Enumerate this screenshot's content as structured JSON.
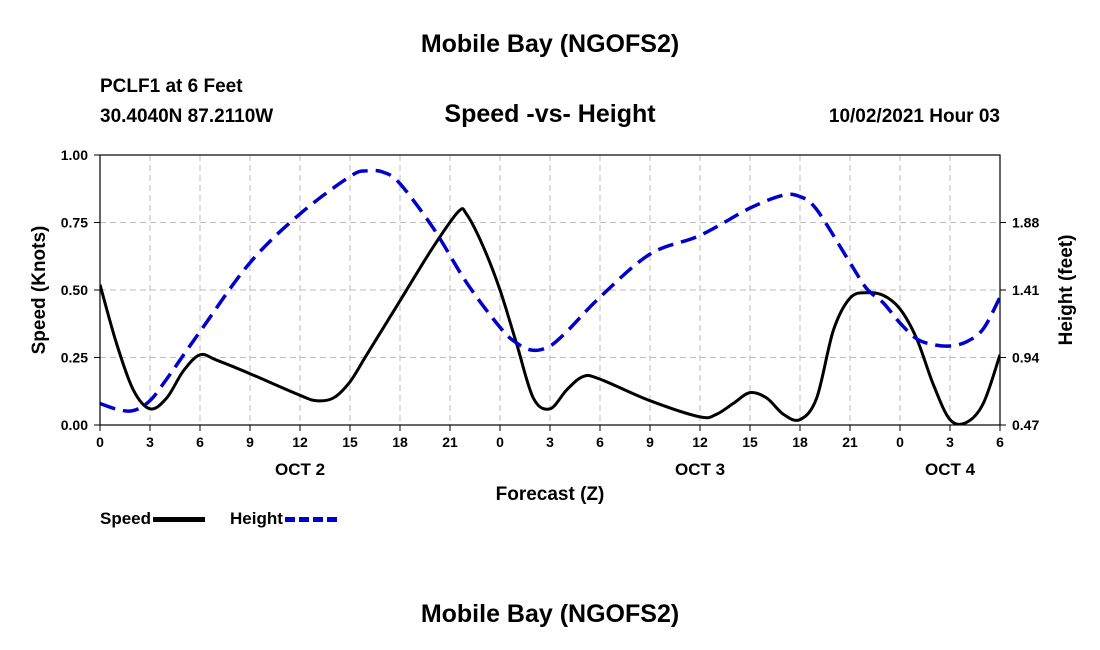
{
  "header": {
    "title_top": "Mobile Bay (NGOFS2)",
    "station": "PCLF1 at 6 Feet",
    "coords": "30.4040N  87.2110W",
    "chart_title": "Speed -vs- Height",
    "timestamp": "10/02/2021 Hour 03",
    "title_bottom": "Mobile Bay (NGOFS2)"
  },
  "legend": {
    "speed_label": "Speed",
    "height_label": "Height"
  },
  "colors": {
    "speed": "#000000",
    "height": "#0000cc",
    "grid": "#bbbbbb"
  },
  "chart_data": {
    "type": "line",
    "title": "Speed -vs- Height",
    "xlabel": "Forecast (Z)",
    "ylabel": "Speed (Knots)",
    "ylabel_right": "Height (feet)",
    "xlim": [
      0,
      54
    ],
    "ylim": [
      0,
      1.0
    ],
    "ylim_right": [
      0.47,
      2.35
    ],
    "grid": true,
    "legend_position": "bottom-left",
    "x_ticks": [
      0,
      3,
      6,
      9,
      12,
      15,
      18,
      21,
      24,
      27,
      30,
      33,
      36,
      39,
      42,
      45,
      48,
      51,
      54
    ],
    "x_tick_labels": [
      "0",
      "3",
      "6",
      "9",
      "12",
      "15",
      "18",
      "21",
      "0",
      "3",
      "6",
      "9",
      "12",
      "15",
      "18",
      "21",
      "0",
      "3",
      "6"
    ],
    "y_ticks": [
      0,
      0.25,
      0.5,
      0.75,
      1.0
    ],
    "y_tick_labels": [
      "0.00",
      "0.25",
      "0.50",
      "0.75",
      "1.00"
    ],
    "y_right_ticks": [
      0.47,
      0.94,
      1.41,
      1.88
    ],
    "y_right_tick_labels": [
      "0.47",
      "0.94",
      "1.41",
      "1.88"
    ],
    "date_labels": [
      {
        "x": 12,
        "label": "OCT 2"
      },
      {
        "x": 36,
        "label": "OCT 3"
      },
      {
        "x": 51,
        "label": "OCT 4"
      }
    ],
    "series": [
      {
        "name": "Speed",
        "axis": "left",
        "style": "solid",
        "x": [
          0,
          1,
          2,
          3,
          4,
          5,
          6,
          7,
          9,
          12,
          13,
          14,
          15,
          16,
          18,
          20,
          21.5,
          22,
          23,
          24,
          25,
          26,
          27,
          28,
          29,
          30,
          33,
          36,
          37,
          38,
          39,
          40,
          41,
          42,
          43,
          44,
          45,
          46,
          47,
          48,
          49,
          50,
          51,
          52,
          53,
          54
        ],
        "values": [
          0.52,
          0.3,
          0.13,
          0.06,
          0.1,
          0.2,
          0.26,
          0.24,
          0.19,
          0.11,
          0.09,
          0.1,
          0.16,
          0.26,
          0.46,
          0.66,
          0.79,
          0.78,
          0.66,
          0.5,
          0.3,
          0.1,
          0.06,
          0.13,
          0.18,
          0.17,
          0.09,
          0.03,
          0.04,
          0.08,
          0.12,
          0.1,
          0.04,
          0.02,
          0.1,
          0.35,
          0.47,
          0.49,
          0.48,
          0.43,
          0.32,
          0.15,
          0.02,
          0.01,
          0.08,
          0.26
        ]
      },
      {
        "name": "Height",
        "axis": "right",
        "style": "dashed",
        "x": [
          0,
          1,
          2,
          3,
          4,
          6,
          9,
          12,
          15,
          16,
          17,
          18,
          20,
          22,
          24,
          25,
          26,
          27,
          28,
          30,
          33,
          36,
          39,
          41,
          42,
          43,
          45,
          46,
          47,
          48,
          49,
          50,
          51,
          52,
          53,
          54
        ],
        "values": [
          0.62,
          0.58,
          0.57,
          0.64,
          0.79,
          1.12,
          1.6,
          1.94,
          2.2,
          2.24,
          2.23,
          2.15,
          1.84,
          1.46,
          1.15,
          1.04,
          0.99,
          1.02,
          1.12,
          1.36,
          1.66,
          1.79,
          1.98,
          2.07,
          2.06,
          1.97,
          1.6,
          1.42,
          1.32,
          1.18,
          1.07,
          1.03,
          1.02,
          1.05,
          1.14,
          1.36
        ]
      }
    ]
  }
}
